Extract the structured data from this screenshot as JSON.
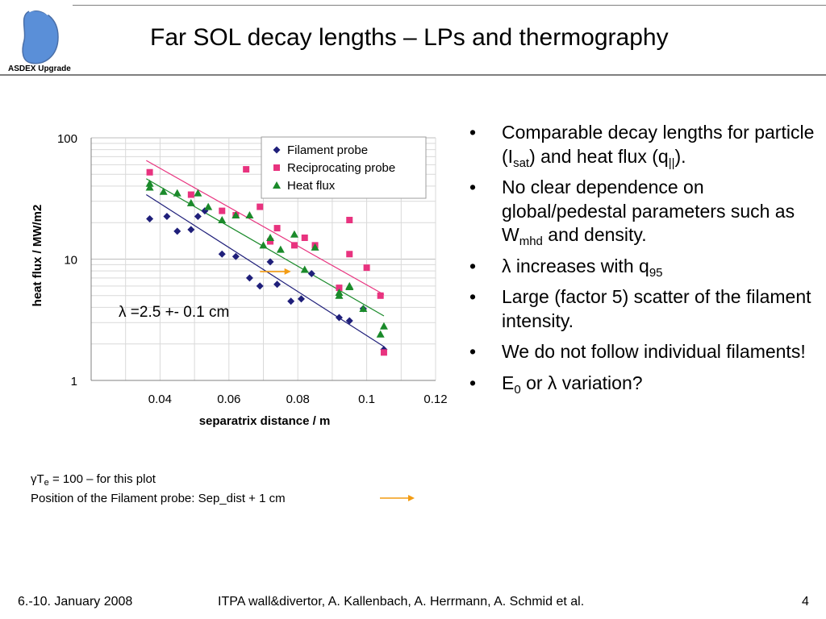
{
  "header": {
    "logo_text": "ASDEX Upgrade",
    "title": "Far SOL decay lengths – LPs and thermography"
  },
  "colors": {
    "filament": "#1f1f7a",
    "reciprocating": "#e8337f",
    "heatflux": "#1a8a2a",
    "arrow": "#f39c12",
    "rule": "#7f7f7f"
  },
  "chart_data": {
    "type": "scatter",
    "xlabel": "separatrix distance / m",
    "ylabel": "heat flux / MW/m2",
    "xlim": [
      0.02,
      0.12
    ],
    "ylim": [
      1,
      100
    ],
    "yscale": "log",
    "x_ticks": [
      0.04,
      0.06,
      0.08,
      0.1,
      0.12
    ],
    "x_tick_labels": [
      "0.04",
      "0.06",
      "0.08",
      "0.1",
      "0.12"
    ],
    "y_ticks": [
      1,
      10,
      100
    ],
    "y_tick_labels": [
      "1",
      "10",
      "100"
    ],
    "grid": true,
    "legend_position": "top-right",
    "annotation": "λ =2.5 +- 0.1 cm",
    "series": [
      {
        "name": "Filament probe",
        "marker": "diamond",
        "points": [
          [
            0.037,
            21.5
          ],
          [
            0.042,
            22.5
          ],
          [
            0.045,
            17
          ],
          [
            0.049,
            17.5
          ],
          [
            0.051,
            22.5
          ],
          [
            0.053,
            25
          ],
          [
            0.058,
            11
          ],
          [
            0.062,
            10.5
          ],
          [
            0.066,
            7
          ],
          [
            0.069,
            6
          ],
          [
            0.072,
            9.5
          ],
          [
            0.074,
            6.2
          ],
          [
            0.078,
            4.5
          ],
          [
            0.081,
            4.7
          ],
          [
            0.084,
            7.6
          ],
          [
            0.092,
            3.3
          ],
          [
            0.095,
            3.1
          ],
          [
            0.099,
            3.9
          ],
          [
            0.105,
            1.8
          ]
        ],
        "fit": [
          [
            0.036,
            34
          ],
          [
            0.105,
            1.9
          ]
        ]
      },
      {
        "name": "Reciprocating probe",
        "marker": "square",
        "points": [
          [
            0.037,
            52
          ],
          [
            0.049,
            34
          ],
          [
            0.058,
            25
          ],
          [
            0.062,
            23
          ],
          [
            0.065,
            55
          ],
          [
            0.069,
            27
          ],
          [
            0.072,
            14
          ],
          [
            0.074,
            18
          ],
          [
            0.079,
            13
          ],
          [
            0.082,
            15
          ],
          [
            0.085,
            13
          ],
          [
            0.092,
            5.8
          ],
          [
            0.095,
            21
          ],
          [
            0.095,
            11
          ],
          [
            0.1,
            8.5
          ],
          [
            0.104,
            5
          ],
          [
            0.105,
            1.7
          ]
        ],
        "fit": [
          [
            0.036,
            65
          ],
          [
            0.105,
            5.1
          ]
        ]
      },
      {
        "name": "Heat flux",
        "marker": "triangle",
        "points": [
          [
            0.037,
            42
          ],
          [
            0.037,
            39
          ],
          [
            0.041,
            36
          ],
          [
            0.045,
            35
          ],
          [
            0.049,
            29
          ],
          [
            0.051,
            35
          ],
          [
            0.054,
            27
          ],
          [
            0.058,
            21
          ],
          [
            0.062,
            23
          ],
          [
            0.066,
            23
          ],
          [
            0.07,
            13
          ],
          [
            0.072,
            15
          ],
          [
            0.075,
            12
          ],
          [
            0.079,
            16
          ],
          [
            0.082,
            8.2
          ],
          [
            0.085,
            12.5
          ],
          [
            0.092,
            5
          ],
          [
            0.092,
            5.3
          ],
          [
            0.095,
            6
          ],
          [
            0.095,
            5.9
          ],
          [
            0.099,
            3.9
          ],
          [
            0.104,
            2.4
          ],
          [
            0.105,
            2.8
          ]
        ],
        "fit": [
          [
            0.036,
            46
          ],
          [
            0.105,
            3.4
          ]
        ]
      }
    ],
    "marker_arrow": {
      "from_x": 0.069,
      "to_x": 0.078,
      "y": 7.9
    }
  },
  "bullets": [
    {
      "pre": "Comparable decay lengths for particle (I",
      "sub1": "sat",
      "mid": ") and heat flux (q",
      "sub2": "||",
      "post": ")."
    },
    {
      "pre": "No clear dependence on global/pedestal parameters such as W",
      "sub1": "mhd",
      "mid": " and density.",
      "sub2": "",
      "post": ""
    },
    {
      "pre": "λ increases with q",
      "sub1": "95",
      "mid": "",
      "sub2": "",
      "post": ""
    },
    {
      "pre": "Large (factor 5) scatter of the filament intensity.",
      "sub1": "",
      "mid": "",
      "sub2": "",
      "post": ""
    },
    {
      "pre": "We do not follow individual filaments!",
      "sub1": "",
      "mid": "",
      "sub2": "",
      "post": ""
    },
    {
      "pre": "E",
      "sub1": "0",
      "mid": " or λ variation?",
      "sub2": "",
      "post": ""
    }
  ],
  "notes": {
    "line1_pre": "γT",
    "line1_sub": "e",
    "line1_post": " = 100 – for this plot",
    "line2": "Position of the Filament probe: Sep_dist + 1 cm"
  },
  "footer": {
    "date": "6.-10. January 2008",
    "center": "ITPA wall&divertor, A. Kallenbach,  A. Herrmann, A. Schmid et al.",
    "page": "4"
  }
}
